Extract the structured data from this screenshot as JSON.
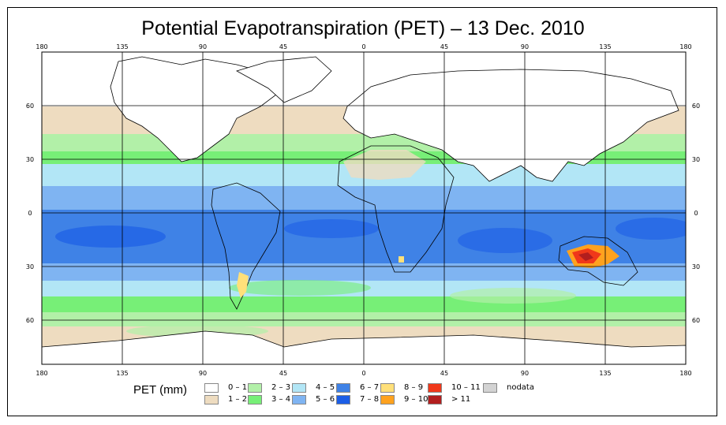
{
  "title": "Potential Evapotranspiration (PET) – 13 Dec. 2010",
  "axes": {
    "top_ticks": [
      "180",
      "135",
      "90",
      "45",
      "0",
      "45",
      "90",
      "135",
      "180"
    ],
    "bottom_ticks": [
      "180",
      "135",
      "90",
      "45",
      "0",
      "45",
      "90",
      "135",
      "180"
    ],
    "left_ticks": [
      "60",
      "30",
      "0",
      "30",
      "60"
    ],
    "right_ticks": [
      "60",
      "30",
      "0",
      "30",
      "60"
    ]
  },
  "legend": {
    "title": "PET (mm)",
    "items": [
      {
        "label": "0 – 1",
        "color": "#ffffff"
      },
      {
        "label": "1 – 2",
        "color": "#eedcc0"
      },
      {
        "label": "2 – 3",
        "color": "#b2f0a8"
      },
      {
        "label": "3 – 4",
        "color": "#77ef77"
      },
      {
        "label": "4 – 5",
        "color": "#b2e6f6"
      },
      {
        "label": "5 – 6",
        "color": "#7fb4f2"
      },
      {
        "label": "6 – 7",
        "color": "#3f82e6"
      },
      {
        "label": "7 – 8",
        "color": "#1c5ee6"
      },
      {
        "label": "8 – 9",
        "color": "#ffe07a"
      },
      {
        "label": "9 – 10",
        "color": "#ffa21e"
      },
      {
        "label": "10 – 11",
        "color": "#f0381a"
      },
      {
        "label": "> 11",
        "color": "#b21e1e"
      },
      {
        "label": "nodata",
        "color": "#d3d3d3"
      }
    ]
  }
}
